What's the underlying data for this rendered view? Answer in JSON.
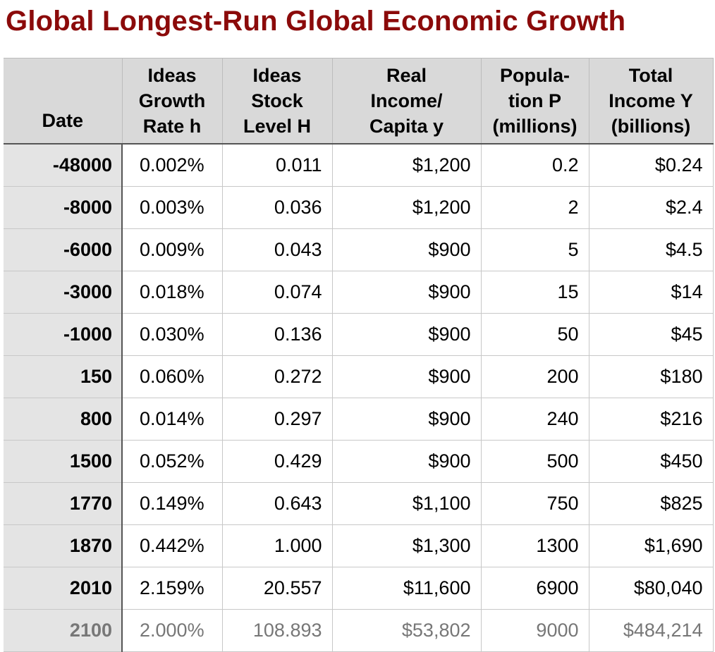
{
  "title": "Global Longest-Run Global Economic Growth",
  "columns": [
    "Date",
    "Ideas\nGrowth\nRate h",
    "Ideas\nStock\nLevel H",
    "Real\nIncome/\nCapita y",
    "Popula-\ntion P\n(millions)",
    "Total\nIncome Y\n(billions)"
  ],
  "rows": [
    {
      "date": "-48000",
      "rate": "0.002%",
      "stock": "0.011",
      "income": "$1,200",
      "pop": "0.2",
      "total": "$0.24"
    },
    {
      "date": "-8000",
      "rate": "0.003%",
      "stock": "0.036",
      "income": "$1,200",
      "pop": "2",
      "total": "$2.4"
    },
    {
      "date": "-6000",
      "rate": "0.009%",
      "stock": "0.043",
      "income": "$900",
      "pop": "5",
      "total": "$4.5"
    },
    {
      "date": "-3000",
      "rate": "0.018%",
      "stock": "0.074",
      "income": "$900",
      "pop": "15",
      "total": "$14"
    },
    {
      "date": "-1000",
      "rate": "0.030%",
      "stock": "0.136",
      "income": "$900",
      "pop": "50",
      "total": "$45"
    },
    {
      "date": "150",
      "rate": "0.060%",
      "stock": "0.272",
      "income": "$900",
      "pop": "200",
      "total": "$180"
    },
    {
      "date": "800",
      "rate": "0.014%",
      "stock": "0.297",
      "income": "$900",
      "pop": "240",
      "total": "$216"
    },
    {
      "date": "1500",
      "rate": "0.052%",
      "stock": "0.429",
      "income": "$900",
      "pop": "500",
      "total": "$450"
    },
    {
      "date": "1770",
      "rate": "0.149%",
      "stock": "0.643",
      "income": "$1,100",
      "pop": "750",
      "total": "$825"
    },
    {
      "date": "1870",
      "rate": "0.442%",
      "stock": "1.000",
      "income": "$1,300",
      "pop": "1300",
      "total": "$1,690"
    },
    {
      "date": "2010",
      "rate": "2.159%",
      "stock": "20.557",
      "income": "$11,600",
      "pop": "6900",
      "total": "$80,040"
    },
    {
      "date": "2100",
      "rate": "2.000%",
      "stock": "108.893",
      "income": "$53,802",
      "pop": "9000",
      "total": "$484,214",
      "projected": true
    }
  ],
  "colors": {
    "title": "#8b0a0a",
    "header_bg": "#d9d9d9",
    "date_bg": "#e4e4e4",
    "projected_text": "#777777"
  }
}
